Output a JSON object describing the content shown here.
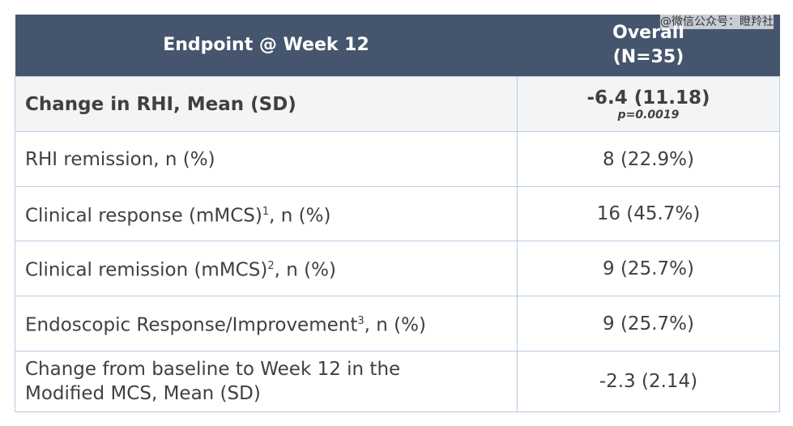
{
  "watermark": "@微信公众号：瞪羚社",
  "header": {
    "endpoint": "Endpoint @ Week 12",
    "overall": "Overall",
    "n": "(N=35)"
  },
  "rows": [
    {
      "label": "Change in RHI, Mean (SD)",
      "value": "-6.4 (11.18)",
      "note": "p=0.0019"
    },
    {
      "label": "RHI remission, n (%)",
      "value": "8 (22.9%)"
    },
    {
      "label": "Clinical response (mMCS)",
      "sup": "1",
      "label_end": ", n (%)",
      "value": "16 (45.7%)"
    },
    {
      "label": "Clinical remission (mMCS)",
      "sup": "2",
      "label_end": ", n (%)",
      "value": "9 (25.7%)"
    },
    {
      "label": "Endoscopic Response/Improvement",
      "sup": "3",
      "label_end": ", n (%)",
      "value": "9 (25.7%)"
    },
    {
      "label_lines": [
        "Change from baseline to Week 12 in the",
        "Modified MCS, Mean (SD)"
      ],
      "value": "-2.3 (2.14)"
    }
  ]
}
